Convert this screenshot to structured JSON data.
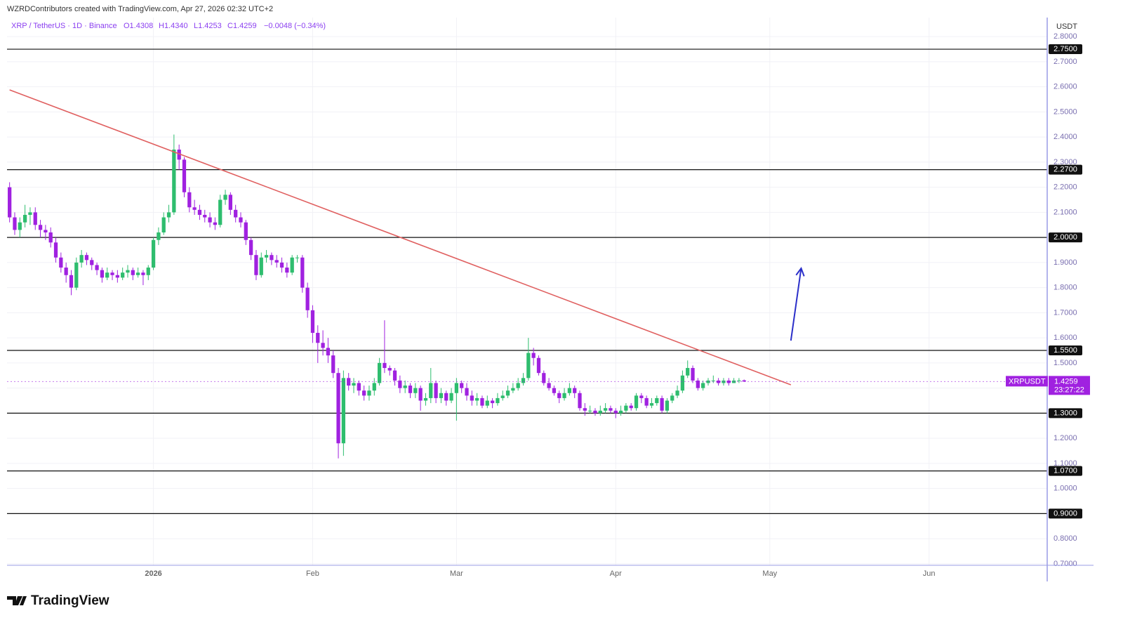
{
  "chart_data": {
    "type": "candlestick",
    "credit": "WZRDContributors created with TradingView.com, Apr 27, 2026 02:32 UTC+2",
    "legend": {
      "symbol": "XRP / TetherUS · 1D · Binance",
      "open": "O1.4308",
      "high": "H1.4340",
      "low": "L1.4253",
      "close": "C1.4259",
      "change": "−0.0048 (−0.34%)"
    },
    "y_unit": "USDT",
    "brand": "TradingView",
    "up_color": "#2ebd6e",
    "down_color": "#a021e0",
    "grid": true,
    "xlim": [
      -0.5,
      202
    ],
    "xticks": [
      {
        "value": 28,
        "label": "2026"
      },
      {
        "value": 59,
        "label": "Feb"
      },
      {
        "value": 87,
        "label": "Mar"
      },
      {
        "value": 118,
        "label": "Apr"
      },
      {
        "value": 148,
        "label": "May"
      },
      {
        "value": 179,
        "label": "Jun"
      }
    ],
    "ylim": [
      0.694,
      2.876
    ],
    "yticks": [
      {
        "value": 0.7,
        "label": "0.7000"
      },
      {
        "value": 0.8,
        "label": "0.8000"
      },
      {
        "value": 0.9,
        "label": "0.9000"
      },
      {
        "value": 1.0,
        "label": "1.0000"
      },
      {
        "value": 1.1,
        "label": "1.1000"
      },
      {
        "value": 1.2,
        "label": "1.2000"
      },
      {
        "value": 1.3,
        "label": "1.3000"
      },
      {
        "value": 1.4,
        "label": "1.4000"
      },
      {
        "value": 1.5,
        "label": "1.5000"
      },
      {
        "value": 1.6,
        "label": "1.6000"
      },
      {
        "value": 1.7,
        "label": "1.7000"
      },
      {
        "value": 1.8,
        "label": "1.8000"
      },
      {
        "value": 1.9,
        "label": "1.9000"
      },
      {
        "value": 2.0,
        "label": "2.0000"
      },
      {
        "value": 2.1,
        "label": "2.1000"
      },
      {
        "value": 2.2,
        "label": "2.2000"
      },
      {
        "value": 2.3,
        "label": "2.3000"
      },
      {
        "value": 2.4,
        "label": "2.4000"
      },
      {
        "value": 2.5,
        "label": "2.5000"
      },
      {
        "value": 2.6,
        "label": "2.6000"
      },
      {
        "value": 2.7,
        "label": "2.7000"
      },
      {
        "value": 2.8,
        "label": "2.8000"
      }
    ],
    "levels": [
      {
        "value": 2.75,
        "label": "2.7500"
      },
      {
        "value": 2.27,
        "label": "2.2700"
      },
      {
        "value": 2.0,
        "label": "2.0000"
      },
      {
        "value": 1.55,
        "label": "1.5500"
      },
      {
        "value": 1.3,
        "label": "1.3000"
      },
      {
        "value": 1.07,
        "label": "1.0700"
      },
      {
        "value": 0.9,
        "label": "0.9000"
      }
    ],
    "trendline": {
      "color": "#e06060",
      "x": [
        0,
        152.1
      ],
      "y": [
        2.588,
        1.413
      ]
    },
    "arrow": {
      "color": "#2b2fc9",
      "x": [
        152.1,
        154.1
      ],
      "y": [
        1.589,
        1.877
      ]
    },
    "price_label": {
      "symbol": "XRPUSDT",
      "value": 1.4259,
      "countdown": "23:27:22",
      "color": "#a021e0"
    },
    "open": [
      2.2,
      2.08,
      2.03,
      2.06,
      2.09,
      2.1,
      2.05,
      2.03,
      2.02,
      1.98,
      1.92,
      1.88,
      1.85,
      1.8,
      1.9,
      1.93,
      1.91,
      1.89,
      1.87,
      1.84,
      1.86,
      1.85,
      1.84,
      1.86,
      1.87,
      1.85,
      1.86,
      1.85,
      1.88,
      1.99,
      2.02,
      2.08,
      2.1,
      2.35,
      2.31,
      2.18,
      2.12,
      2.11,
      2.09,
      2.08,
      2.06,
      2.05,
      2.15,
      2.17,
      2.11,
      2.08,
      2.06,
      1.99,
      1.93,
      1.85,
      1.92,
      1.93,
      1.91,
      1.9,
      1.88,
      1.86,
      1.92,
      1.92,
      1.8,
      1.71,
      1.62,
      1.58,
      1.56,
      1.53,
      1.46,
      1.18,
      1.44,
      1.41,
      1.42,
      1.39,
      1.37,
      1.39,
      1.42,
      1.5,
      1.48,
      1.47,
      1.43,
      1.4,
      1.41,
      1.38,
      1.4,
      1.35,
      1.36,
      1.42,
      1.36,
      1.38,
      1.35,
      1.38,
      1.42,
      1.4,
      1.37,
      1.35,
      1.36,
      1.33,
      1.35,
      1.34,
      1.36,
      1.37,
      1.39,
      1.4,
      1.42,
      1.44,
      1.54,
      1.52,
      1.46,
      1.42,
      1.4,
      1.38,
      1.36,
      1.38,
      1.4,
      1.38,
      1.32,
      1.31,
      1.31,
      1.3,
      1.31,
      1.32,
      1.31,
      1.3,
      1.31,
      1.33,
      1.32,
      1.37,
      1.36,
      1.33,
      1.34,
      1.36,
      1.31,
      1.35,
      1.37,
      1.39,
      1.45,
      1.48,
      1.43,
      1.4,
      1.42,
      1.43,
      1.43,
      1.42,
      1.43,
      1.42,
      1.43,
      1.4308
    ],
    "high": [
      2.22,
      2.1,
      2.08,
      2.13,
      2.12,
      2.12,
      2.07,
      2.05,
      2.04,
      2.0,
      1.94,
      1.9,
      1.87,
      1.92,
      1.95,
      1.94,
      1.92,
      1.9,
      1.88,
      1.88,
      1.87,
      1.87,
      1.88,
      1.89,
      1.88,
      1.88,
      1.87,
      1.89,
      2.0,
      2.04,
      2.1,
      2.13,
      2.41,
      2.37,
      2.32,
      2.2,
      2.15,
      2.13,
      2.11,
      2.1,
      2.08,
      2.17,
      2.19,
      2.18,
      2.13,
      2.1,
      2.07,
      2.0,
      1.95,
      1.94,
      1.95,
      1.94,
      1.93,
      1.92,
      1.9,
      1.93,
      1.93,
      1.93,
      1.82,
      1.73,
      1.65,
      1.63,
      1.6,
      1.55,
      1.48,
      1.47,
      1.46,
      1.44,
      1.43,
      1.41,
      1.41,
      1.44,
      1.52,
      1.67,
      1.49,
      1.48,
      1.45,
      1.43,
      1.42,
      1.42,
      1.41,
      1.38,
      1.48,
      1.43,
      1.4,
      1.39,
      1.4,
      1.44,
      1.43,
      1.42,
      1.39,
      1.38,
      1.37,
      1.37,
      1.36,
      1.38,
      1.39,
      1.41,
      1.42,
      1.44,
      1.46,
      1.6,
      1.56,
      1.53,
      1.47,
      1.44,
      1.41,
      1.39,
      1.4,
      1.42,
      1.41,
      1.39,
      1.34,
      1.33,
      1.32,
      1.33,
      1.34,
      1.33,
      1.32,
      1.33,
      1.34,
      1.34,
      1.38,
      1.38,
      1.37,
      1.36,
      1.37,
      1.37,
      1.36,
      1.38,
      1.41,
      1.47,
      1.51,
      1.49,
      1.44,
      1.43,
      1.44,
      1.45,
      1.44,
      1.44,
      1.44,
      1.44,
      1.44,
      1.434
    ],
    "low": [
      2.06,
      2.01,
      2.0,
      2.04,
      2.05,
      2.03,
      2.0,
      1.99,
      1.96,
      1.9,
      1.86,
      1.82,
      1.77,
      1.79,
      1.88,
      1.89,
      1.87,
      1.85,
      1.82,
      1.83,
      1.83,
      1.82,
      1.83,
      1.84,
      1.83,
      1.84,
      1.81,
      1.83,
      1.87,
      1.97,
      2.01,
      2.06,
      2.09,
      2.27,
      2.16,
      2.1,
      2.09,
      2.07,
      2.06,
      2.04,
      2.03,
      2.04,
      2.13,
      2.09,
      2.06,
      2.04,
      1.97,
      1.91,
      1.83,
      1.84,
      1.9,
      1.89,
      1.88,
      1.86,
      1.84,
      1.85,
      1.9,
      1.78,
      1.68,
      1.58,
      1.5,
      1.53,
      1.5,
      1.44,
      1.12,
      1.13,
      1.39,
      1.38,
      1.37,
      1.35,
      1.35,
      1.37,
      1.41,
      1.46,
      1.45,
      1.41,
      1.38,
      1.38,
      1.36,
      1.36,
      1.31,
      1.33,
      1.34,
      1.34,
      1.34,
      1.33,
      1.34,
      1.27,
      1.38,
      1.35,
      1.33,
      1.33,
      1.32,
      1.32,
      1.32,
      1.33,
      1.35,
      1.36,
      1.38,
      1.39,
      1.41,
      1.43,
      1.49,
      1.45,
      1.41,
      1.39,
      1.37,
      1.34,
      1.35,
      1.37,
      1.36,
      1.31,
      1.29,
      1.3,
      1.29,
      1.29,
      1.3,
      1.3,
      1.28,
      1.29,
      1.3,
      1.31,
      1.31,
      1.34,
      1.32,
      1.32,
      1.33,
      1.3,
      1.3,
      1.34,
      1.36,
      1.38,
      1.44,
      1.42,
      1.39,
      1.39,
      1.41,
      1.42,
      1.41,
      1.41,
      1.41,
      1.42,
      1.42,
      1.4253
    ],
    "close": [
      2.08,
      2.03,
      2.06,
      2.09,
      2.1,
      2.05,
      2.03,
      2.02,
      1.98,
      1.92,
      1.88,
      1.85,
      1.8,
      1.9,
      1.93,
      1.91,
      1.89,
      1.87,
      1.84,
      1.86,
      1.85,
      1.84,
      1.86,
      1.87,
      1.85,
      1.86,
      1.85,
      1.88,
      1.99,
      2.02,
      2.08,
      2.1,
      2.35,
      2.31,
      2.18,
      2.12,
      2.11,
      2.09,
      2.08,
      2.06,
      2.05,
      2.15,
      2.17,
      2.11,
      2.08,
      2.06,
      1.99,
      1.93,
      1.85,
      1.92,
      1.93,
      1.91,
      1.9,
      1.88,
      1.86,
      1.92,
      1.92,
      1.8,
      1.71,
      1.62,
      1.58,
      1.56,
      1.53,
      1.46,
      1.18,
      1.44,
      1.41,
      1.42,
      1.39,
      1.37,
      1.39,
      1.42,
      1.5,
      1.48,
      1.47,
      1.43,
      1.4,
      1.41,
      1.38,
      1.4,
      1.35,
      1.36,
      1.42,
      1.36,
      1.38,
      1.35,
      1.38,
      1.42,
      1.4,
      1.37,
      1.35,
      1.36,
      1.33,
      1.35,
      1.34,
      1.36,
      1.37,
      1.39,
      1.4,
      1.42,
      1.44,
      1.54,
      1.52,
      1.46,
      1.42,
      1.4,
      1.38,
      1.36,
      1.38,
      1.4,
      1.38,
      1.32,
      1.31,
      1.31,
      1.3,
      1.31,
      1.32,
      1.31,
      1.3,
      1.31,
      1.33,
      1.32,
      1.37,
      1.36,
      1.33,
      1.34,
      1.36,
      1.31,
      1.35,
      1.37,
      1.39,
      1.45,
      1.48,
      1.43,
      1.4,
      1.42,
      1.43,
      1.43,
      1.42,
      1.43,
      1.42,
      1.43,
      1.4308,
      1.4259
    ]
  }
}
